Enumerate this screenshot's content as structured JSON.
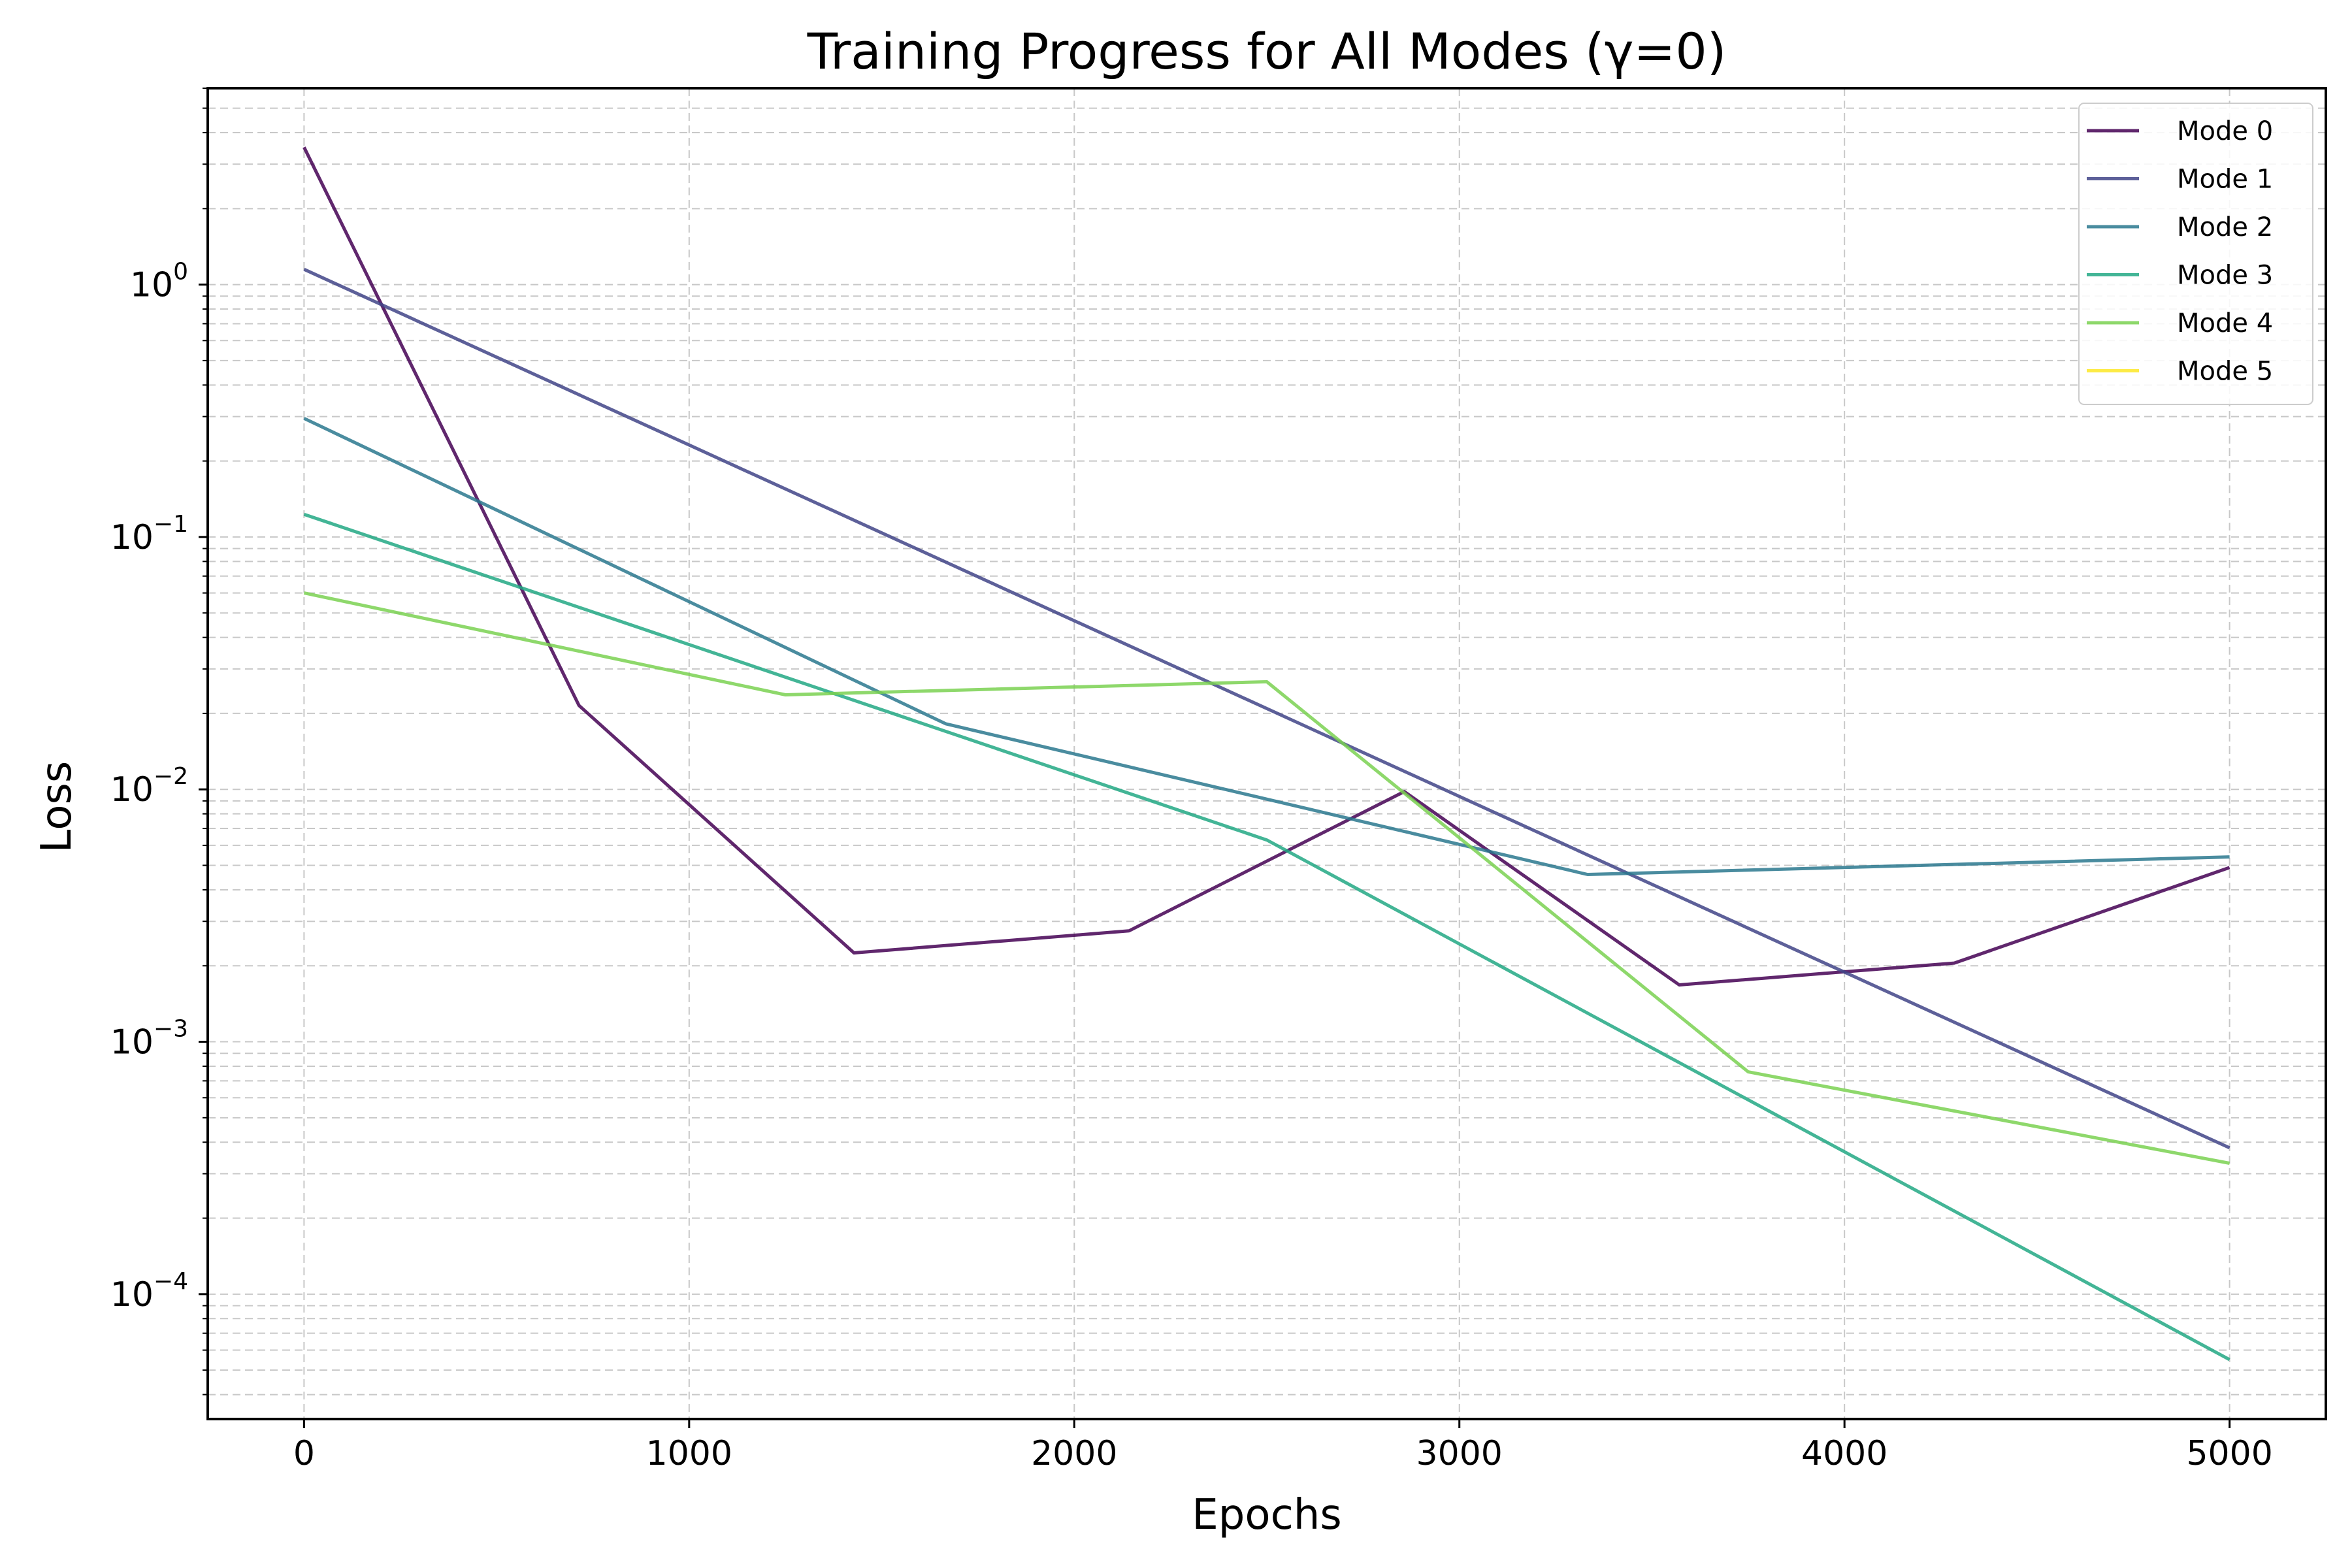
{
  "chart_data": {
    "type": "line",
    "title": "Training Progress for All Modes (γ=0)",
    "xlabel": "Epochs",
    "ylabel": "Loss",
    "yscale": "log",
    "xlim": [
      -250,
      5250
    ],
    "ylim": [
      3.2e-05,
      6
    ],
    "xticks": [
      0,
      1000,
      2000,
      3000,
      4000,
      5000
    ],
    "xtick_labels": [
      "0",
      "1000",
      "2000",
      "3000",
      "4000",
      "5000"
    ],
    "yticks": [
      0.0001,
      0.001,
      0.01,
      0.1,
      1
    ],
    "ytick_labels": [
      {
        "base": "10",
        "exp": "−4"
      },
      {
        "base": "10",
        "exp": "−3"
      },
      {
        "base": "10",
        "exp": "−2"
      },
      {
        "base": "10",
        "exp": "−1"
      },
      {
        "base": "10",
        "exp": "0"
      }
    ],
    "grid": true,
    "legend_position": "upper right",
    "series": [
      {
        "name": "Mode 0",
        "color": "#440154",
        "x": [
          0,
          714,
          1428,
          2142,
          2857,
          3571,
          4285,
          5000
        ],
        "y": [
          3.5,
          0.0215,
          0.00225,
          0.00275,
          0.0098,
          0.00168,
          0.00205,
          0.0049
        ]
      },
      {
        "name": "Mode 1",
        "color": "#414487",
        "x": [
          0,
          5000
        ],
        "y": [
          1.15,
          0.00038
        ]
      },
      {
        "name": "Mode 2",
        "color": "#2a788e",
        "x": [
          0,
          1666,
          3333,
          5000
        ],
        "y": [
          0.295,
          0.0182,
          0.0046,
          0.0054
        ]
      },
      {
        "name": "Mode 3",
        "color": "#22a884",
        "x": [
          0,
          2500,
          5000
        ],
        "y": [
          0.123,
          0.0063,
          5.5e-05
        ]
      },
      {
        "name": "Mode 4",
        "color": "#7ad151",
        "x": [
          0,
          1250,
          2500,
          3750,
          5000
        ],
        "y": [
          0.06,
          0.0237,
          0.0267,
          0.00076,
          0.00033
        ]
      },
      {
        "name": "Mode 5",
        "color": "#fde725",
        "x": [],
        "y": []
      }
    ]
  }
}
